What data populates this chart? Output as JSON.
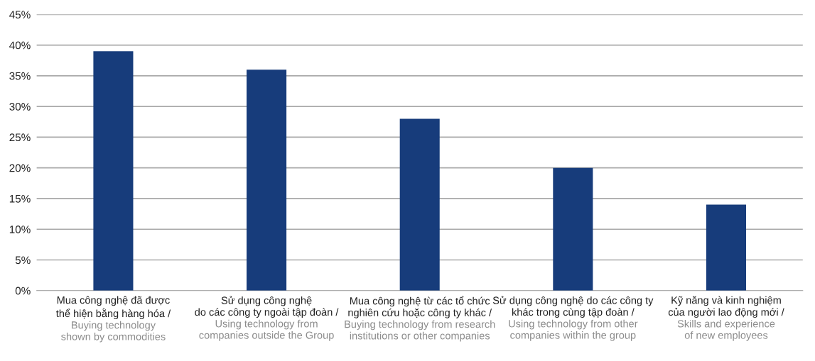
{
  "chart_data": {
    "type": "bar",
    "categories": [
      "Mua công nghệ đã được\nthể hiện bằng hàng hóa /\nBuying technology\nshown by commodities",
      "Sử dụng công nghệ\ndo các công ty ngoài tập đoàn /\nUsing technology from\ncompanies outside the Group",
      "Mua công nghệ từ các tổ chức\nnghiên cứu hoặc công ty khác /\nBuying technology from research\ninstitutions or other companies",
      "Sử dụng công nghệ do các công ty\nkhác trong cùng tập đoàn /\nUsing technology from other\ncompanies within the group",
      "Kỹ năng và kinh nghiệm\ncủa người lao động mới /\nSkills and experience\nof new employees"
    ],
    "values": [
      39,
      36,
      28,
      20,
      14
    ],
    "color": "#173c7b",
    "ylim": [
      0,
      45
    ],
    "yticks": [
      {
        "value": 0,
        "label": "0%"
      },
      {
        "value": 5,
        "label": "5%"
      },
      {
        "value": 10,
        "label": "10%"
      },
      {
        "value": 15,
        "label": "15%"
      },
      {
        "value": 20,
        "label": "20%"
      },
      {
        "value": 25,
        "label": "25%"
      },
      {
        "value": 30,
        "label": "30%"
      },
      {
        "value": 35,
        "label": "35%"
      },
      {
        "value": 40,
        "label": "40%"
      },
      {
        "value": 45,
        "label": "45%"
      }
    ],
    "grid": "y"
  }
}
